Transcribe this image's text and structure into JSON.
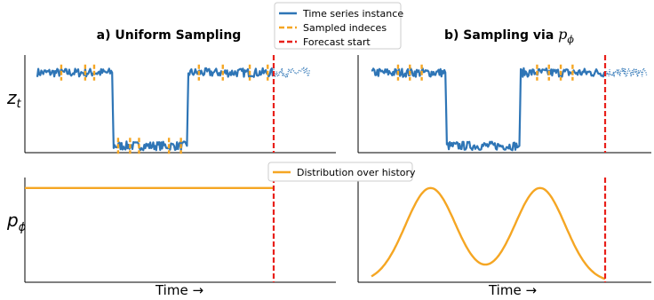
{
  "colors": {
    "series": "#2e75b6",
    "sample": "#f5a623",
    "forecast": "#e8201a",
    "axis": "#000000",
    "legend_border": "#cccccc"
  },
  "chart_data": [
    {
      "type": "line",
      "panel": "top-left",
      "title": "a) Uniform Sampling",
      "ylabel": "z_t",
      "xlabel": "",
      "grid": false,
      "xlim": [
        0,
        100
      ],
      "ylim": [
        0,
        1
      ],
      "series": [
        {
          "name": "Time series instance",
          "style": "solid",
          "segments": [
            {
              "x": [
                0,
                25,
                25.5,
                50,
                50.5,
                79
              ],
              "y": [
                0.82,
                0.82,
                0.07,
                0.07,
                0.82,
                0.82
              ]
            }
          ]
        },
        {
          "name": "Time series instance",
          "style": "dotted-continuation",
          "segments": [
            {
              "x": [
                79,
                91
              ],
              "y": [
                0.82,
                0.82
              ]
            }
          ]
        }
      ],
      "sampled_indices": [
        8,
        16,
        19,
        27,
        31,
        34,
        44,
        48,
        54,
        62,
        71,
        77
      ],
      "forecast_start": 79
    },
    {
      "type": "line",
      "panel": "top-right",
      "title": "b) Sampling via ",
      "title_math": "p",
      "title_math_sub": "ϕ",
      "ylabel": "",
      "xlabel": "",
      "grid": false,
      "xlim": [
        0,
        100
      ],
      "ylim": [
        0,
        1
      ],
      "series": [
        {
          "name": "Time series instance",
          "style": "solid",
          "segments": [
            {
              "x": [
                0,
                25,
                25.5,
                50,
                50.5,
                79
              ],
              "y": [
                0.82,
                0.82,
                0.07,
                0.07,
                0.82,
                0.82
              ]
            }
          ]
        },
        {
          "name": "Time series instance",
          "style": "dotted-continuation",
          "segments": [
            {
              "x": [
                79,
                93
              ],
              "y": [
                0.82,
                0.82
              ]
            }
          ]
        }
      ],
      "sampled_indices": [
        9,
        13,
        17,
        56,
        60,
        64,
        68
      ],
      "forecast_start": 79
    },
    {
      "type": "line",
      "panel": "bottom-left",
      "title": "",
      "ylabel": "p_ϕ",
      "xlabel": "Time →",
      "grid": false,
      "xlim": [
        0,
        100
      ],
      "ylim": [
        0,
        1
      ],
      "series": [
        {
          "name": "Distribution over history",
          "shape": "uniform",
          "x": [
            0,
            79
          ],
          "y": [
            0.9,
            0.9
          ]
        }
      ],
      "forecast_start": 79
    },
    {
      "type": "line",
      "panel": "bottom-right",
      "title": "",
      "ylabel": "",
      "xlabel": "Time →",
      "grid": false,
      "xlim": [
        0,
        100
      ],
      "ylim": [
        0,
        1
      ],
      "series": [
        {
          "name": "Distribution over history",
          "shape": "two-peaks",
          "peaks": [
            20,
            57
          ],
          "width": 8.5,
          "x": [
            0,
            79
          ],
          "peak_value": 0.9,
          "base_value": 0.0
        }
      ],
      "forecast_start": 79
    }
  ],
  "legend_top": {
    "items": [
      {
        "label": "Time series instance",
        "style": "solid-blue"
      },
      {
        "label": "Sampled indeces",
        "style": "dashed-orange"
      },
      {
        "label": "Forecast start",
        "style": "dashed-red"
      }
    ]
  },
  "legend_bottom": {
    "items": [
      {
        "label": "Distribution over history",
        "style": "solid-orange"
      }
    ]
  }
}
